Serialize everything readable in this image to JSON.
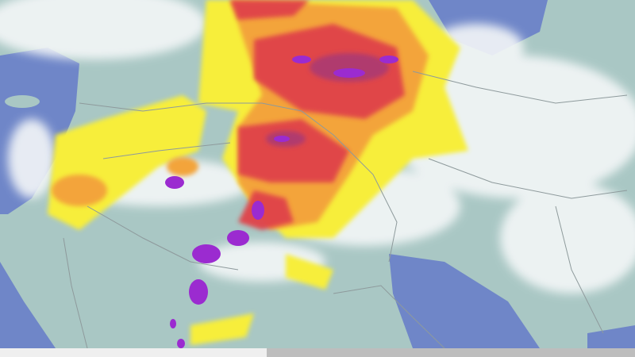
{
  "map": {
    "type": "weather-radar-satellite",
    "colors": {
      "land": "#a9c7c4",
      "water": "#6f86c8",
      "cloud": "#f4f7f8",
      "rain_light": "#f7ee3a",
      "rain_moderate": "#f3a43a",
      "rain_heavy": "#e0434a",
      "rain_extreme": "#b03a6e",
      "hail": "#9b2bd0",
      "border": "#8e9a9c"
    }
  },
  "timeline": {
    "progress_percent": 42
  }
}
